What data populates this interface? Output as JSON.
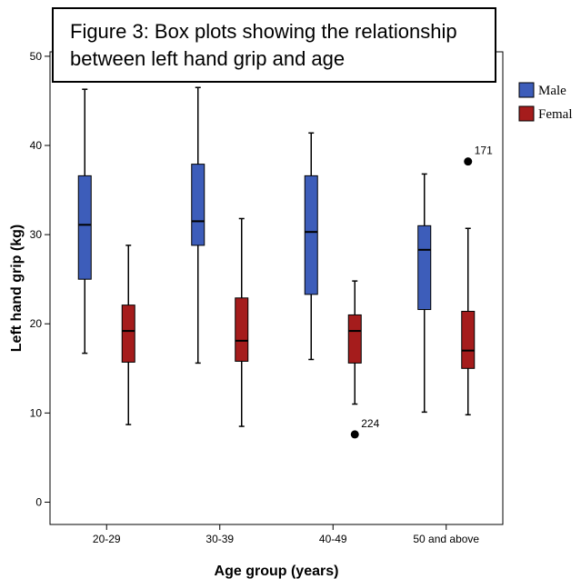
{
  "chart_data": {
    "type": "box",
    "title_lines": [
      "Figure 3: Box plots showing the relationship",
      "between left hand grip and age"
    ],
    "xlabel": "Age group (years)",
    "ylabel": "Left hand grip (kg)",
    "ylim": [
      -2.5,
      50.5
    ],
    "yticks": [
      0,
      10,
      20,
      30,
      40,
      50
    ],
    "categories": [
      "20-29",
      "30-39",
      "40-49",
      "50 and above"
    ],
    "legend_position": "right",
    "series": [
      {
        "name": "Male",
        "color": "#3d5dba",
        "boxes": [
          {
            "min": 16.7,
            "q1": 25.0,
            "median": 31.1,
            "q3": 36.6,
            "max": 46.3,
            "outliers": []
          },
          {
            "min": 15.6,
            "q1": 28.8,
            "median": 31.5,
            "q3": 37.9,
            "max": 46.5,
            "outliers": []
          },
          {
            "min": 16.0,
            "q1": 23.3,
            "median": 30.3,
            "q3": 36.6,
            "max": 41.4,
            "outliers": []
          },
          {
            "min": 10.1,
            "q1": 21.6,
            "median": 28.3,
            "q3": 31.0,
            "max": 36.8,
            "outliers": []
          }
        ]
      },
      {
        "name": "Female",
        "legend_label": "Femal",
        "color": "#a51c1c",
        "boxes": [
          {
            "min": 8.7,
            "q1": 15.7,
            "median": 19.2,
            "q3": 22.1,
            "max": 28.8,
            "outliers": []
          },
          {
            "min": 8.5,
            "q1": 15.8,
            "median": 18.1,
            "q3": 22.9,
            "max": 31.8,
            "outliers": []
          },
          {
            "min": 11.0,
            "q1": 15.6,
            "median": 19.2,
            "q3": 21.0,
            "max": 24.8,
            "outliers": [
              {
                "value": 7.6,
                "label": "224"
              }
            ]
          },
          {
            "min": 9.8,
            "q1": 15.0,
            "median": 17.0,
            "q3": 21.4,
            "max": 30.7,
            "outliers": [
              {
                "value": 38.2,
                "label": "171"
              }
            ]
          }
        ]
      }
    ]
  }
}
